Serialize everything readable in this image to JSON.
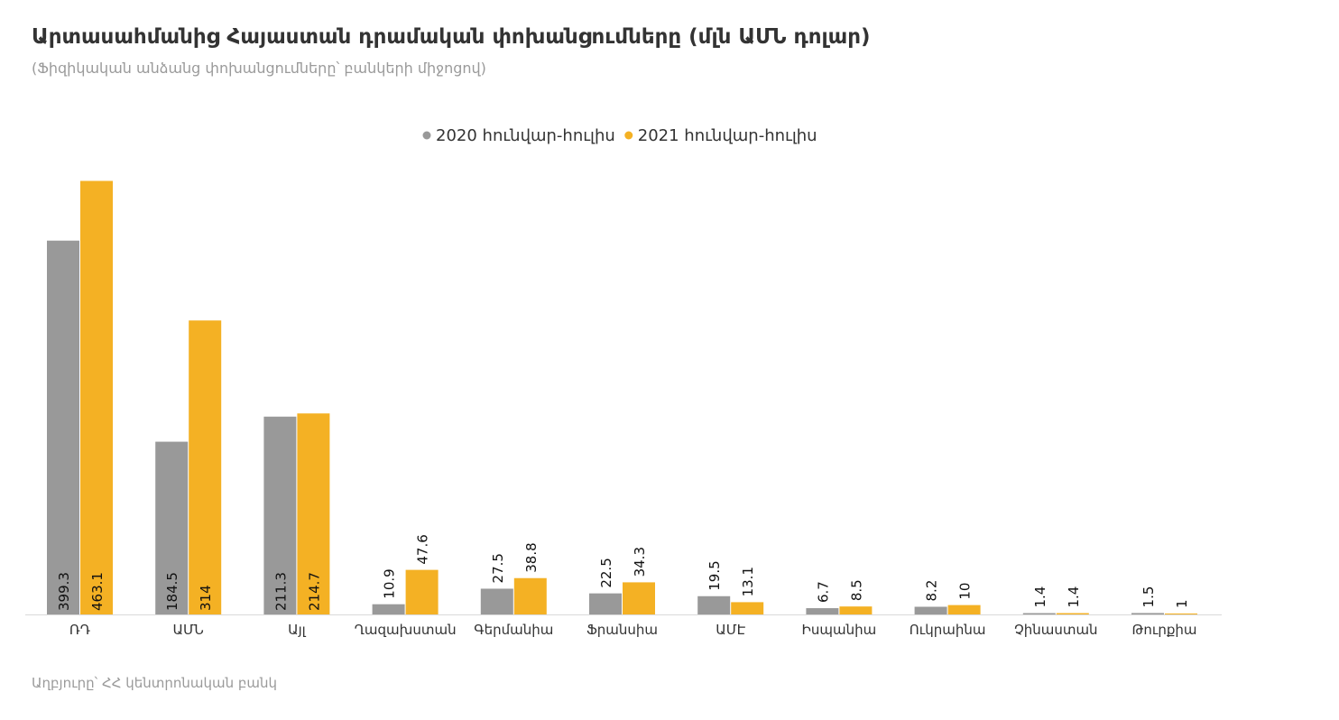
{
  "title": "Արտասահմանից Հայաստան դրամական փոխանցումները (մլն ԱՄՆ դոլար)",
  "subtitle": "(Ֆիզիկական անձանց փոխանցումները՝ բանկերի միջոցով)",
  "source": "Աղբյուրը՝ ՀՀ կենտրոնական բանկ",
  "chart_data": {
    "type": "bar",
    "categories": [
      "ՌԴ",
      "ԱՄՆ",
      "Այլ",
      "Ղազախստան",
      "Գերմանիա",
      "Ֆրանսիա",
      "ԱՄԷ",
      "Իսպանիա",
      "Ուկրաինա",
      "Չինաստան",
      "Թուրքիա"
    ],
    "series": [
      {
        "name": "2020 հունվար-հուլիս",
        "color": "#999999",
        "values": [
          399.3,
          184.5,
          211.3,
          10.9,
          27.5,
          22.5,
          19.5,
          6.7,
          8.2,
          1.4,
          1.5
        ]
      },
      {
        "name": "2021 հունվար-հուլիս",
        "color": "#F4B124",
        "values": [
          463.1,
          314,
          214.7,
          47.6,
          38.8,
          34.3,
          13.1,
          8.5,
          10,
          1.4,
          1
        ]
      }
    ],
    "legend_position": "top-center",
    "ylim": [
      0,
      480
    ],
    "grid": false
  }
}
